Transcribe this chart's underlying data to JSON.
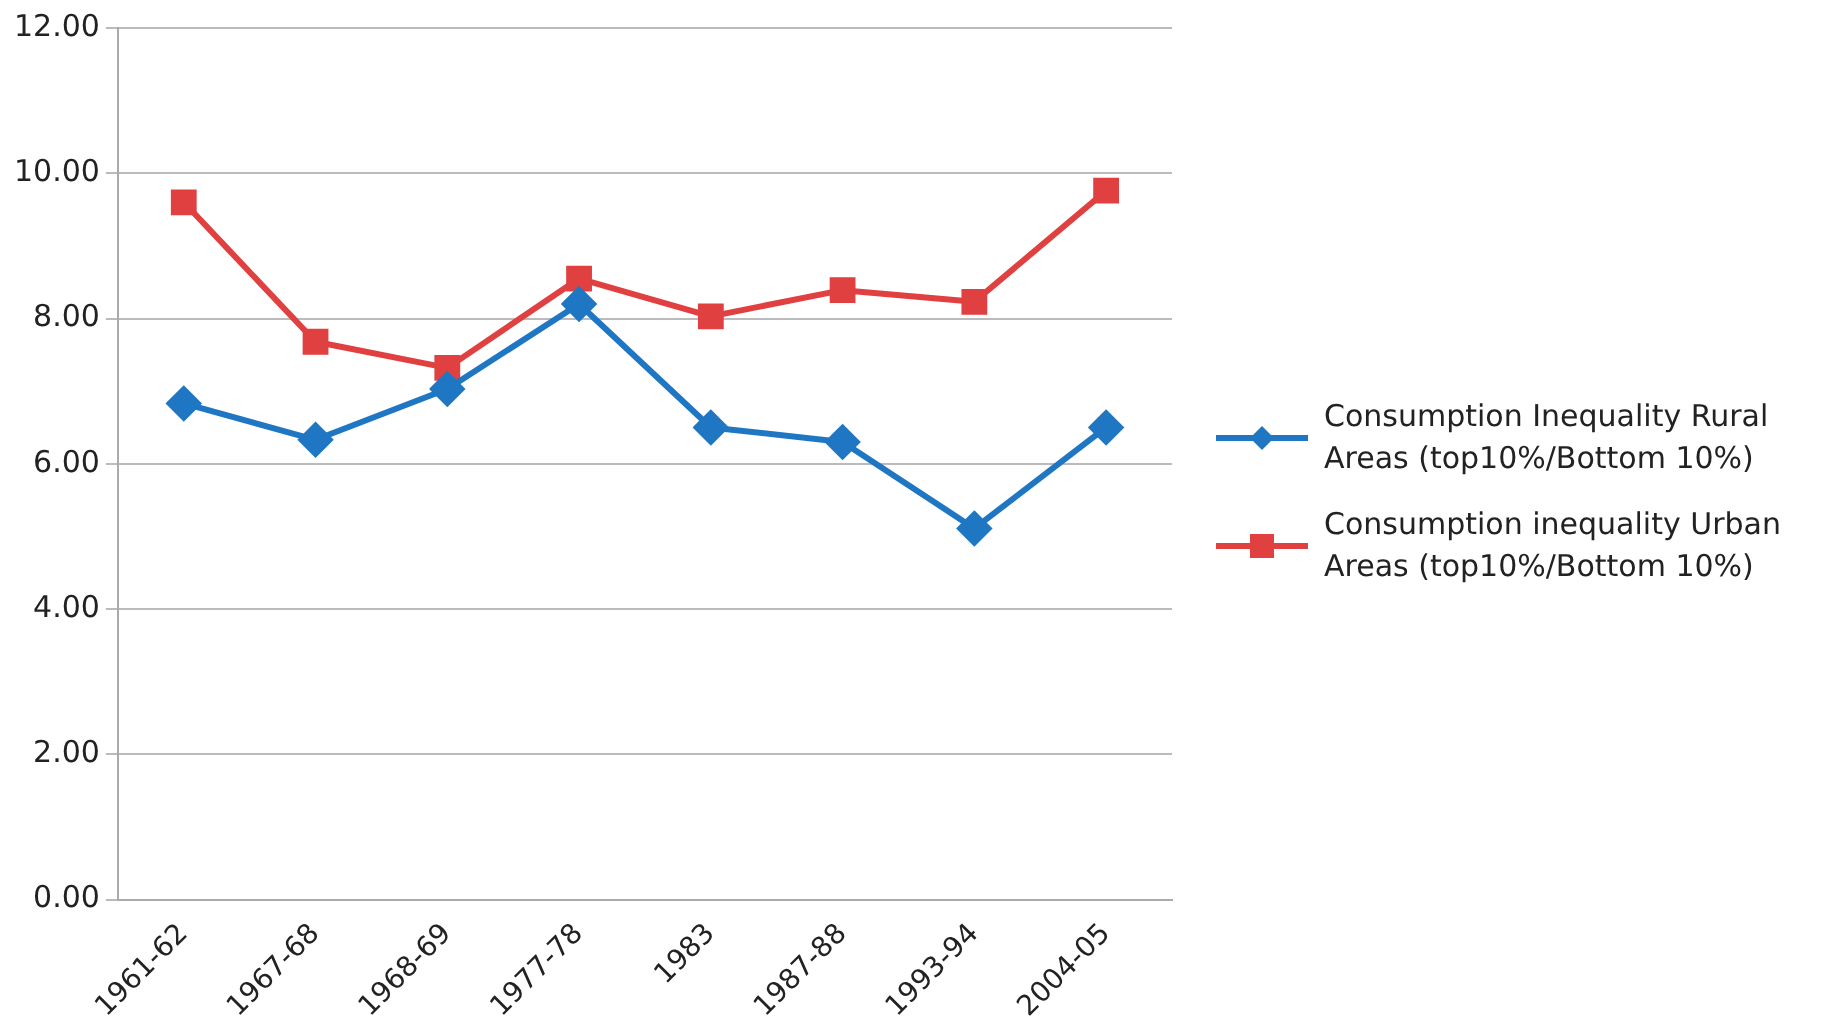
{
  "chart_data": {
    "type": "line",
    "categories": [
      "1961-62",
      "1967-68",
      "1968-69",
      "1977-78",
      "1983",
      "1987-88",
      "1993-94",
      "2004-05"
    ],
    "series": [
      {
        "name": "Consumption Inequality Rural Areas  (top10%/Bottom 10%)",
        "color": "#1f77c4",
        "marker": "diamond",
        "values": [
          6.83,
          6.33,
          7.03,
          8.2,
          6.5,
          6.3,
          5.11,
          6.5
        ]
      },
      {
        "name": "Consumption inequality Urban Areas (top10%/Bottom 10%)",
        "color": "#e04040",
        "marker": "square",
        "values": [
          9.6,
          7.68,
          7.32,
          8.55,
          8.03,
          8.39,
          8.23,
          9.76
        ]
      }
    ],
    "ylim": [
      0,
      12
    ],
    "yticks": [
      {
        "value": 0,
        "label": "0.00"
      },
      {
        "value": 2,
        "label": "2.00"
      },
      {
        "value": 4,
        "label": "4.00"
      },
      {
        "value": 6,
        "label": "6.00"
      },
      {
        "value": 8,
        "label": "8.00"
      },
      {
        "value": 10,
        "label": "10.00"
      },
      {
        "value": 12,
        "label": "12.00"
      }
    ],
    "grid": "y",
    "legend": "right",
    "line_style": "solid"
  }
}
